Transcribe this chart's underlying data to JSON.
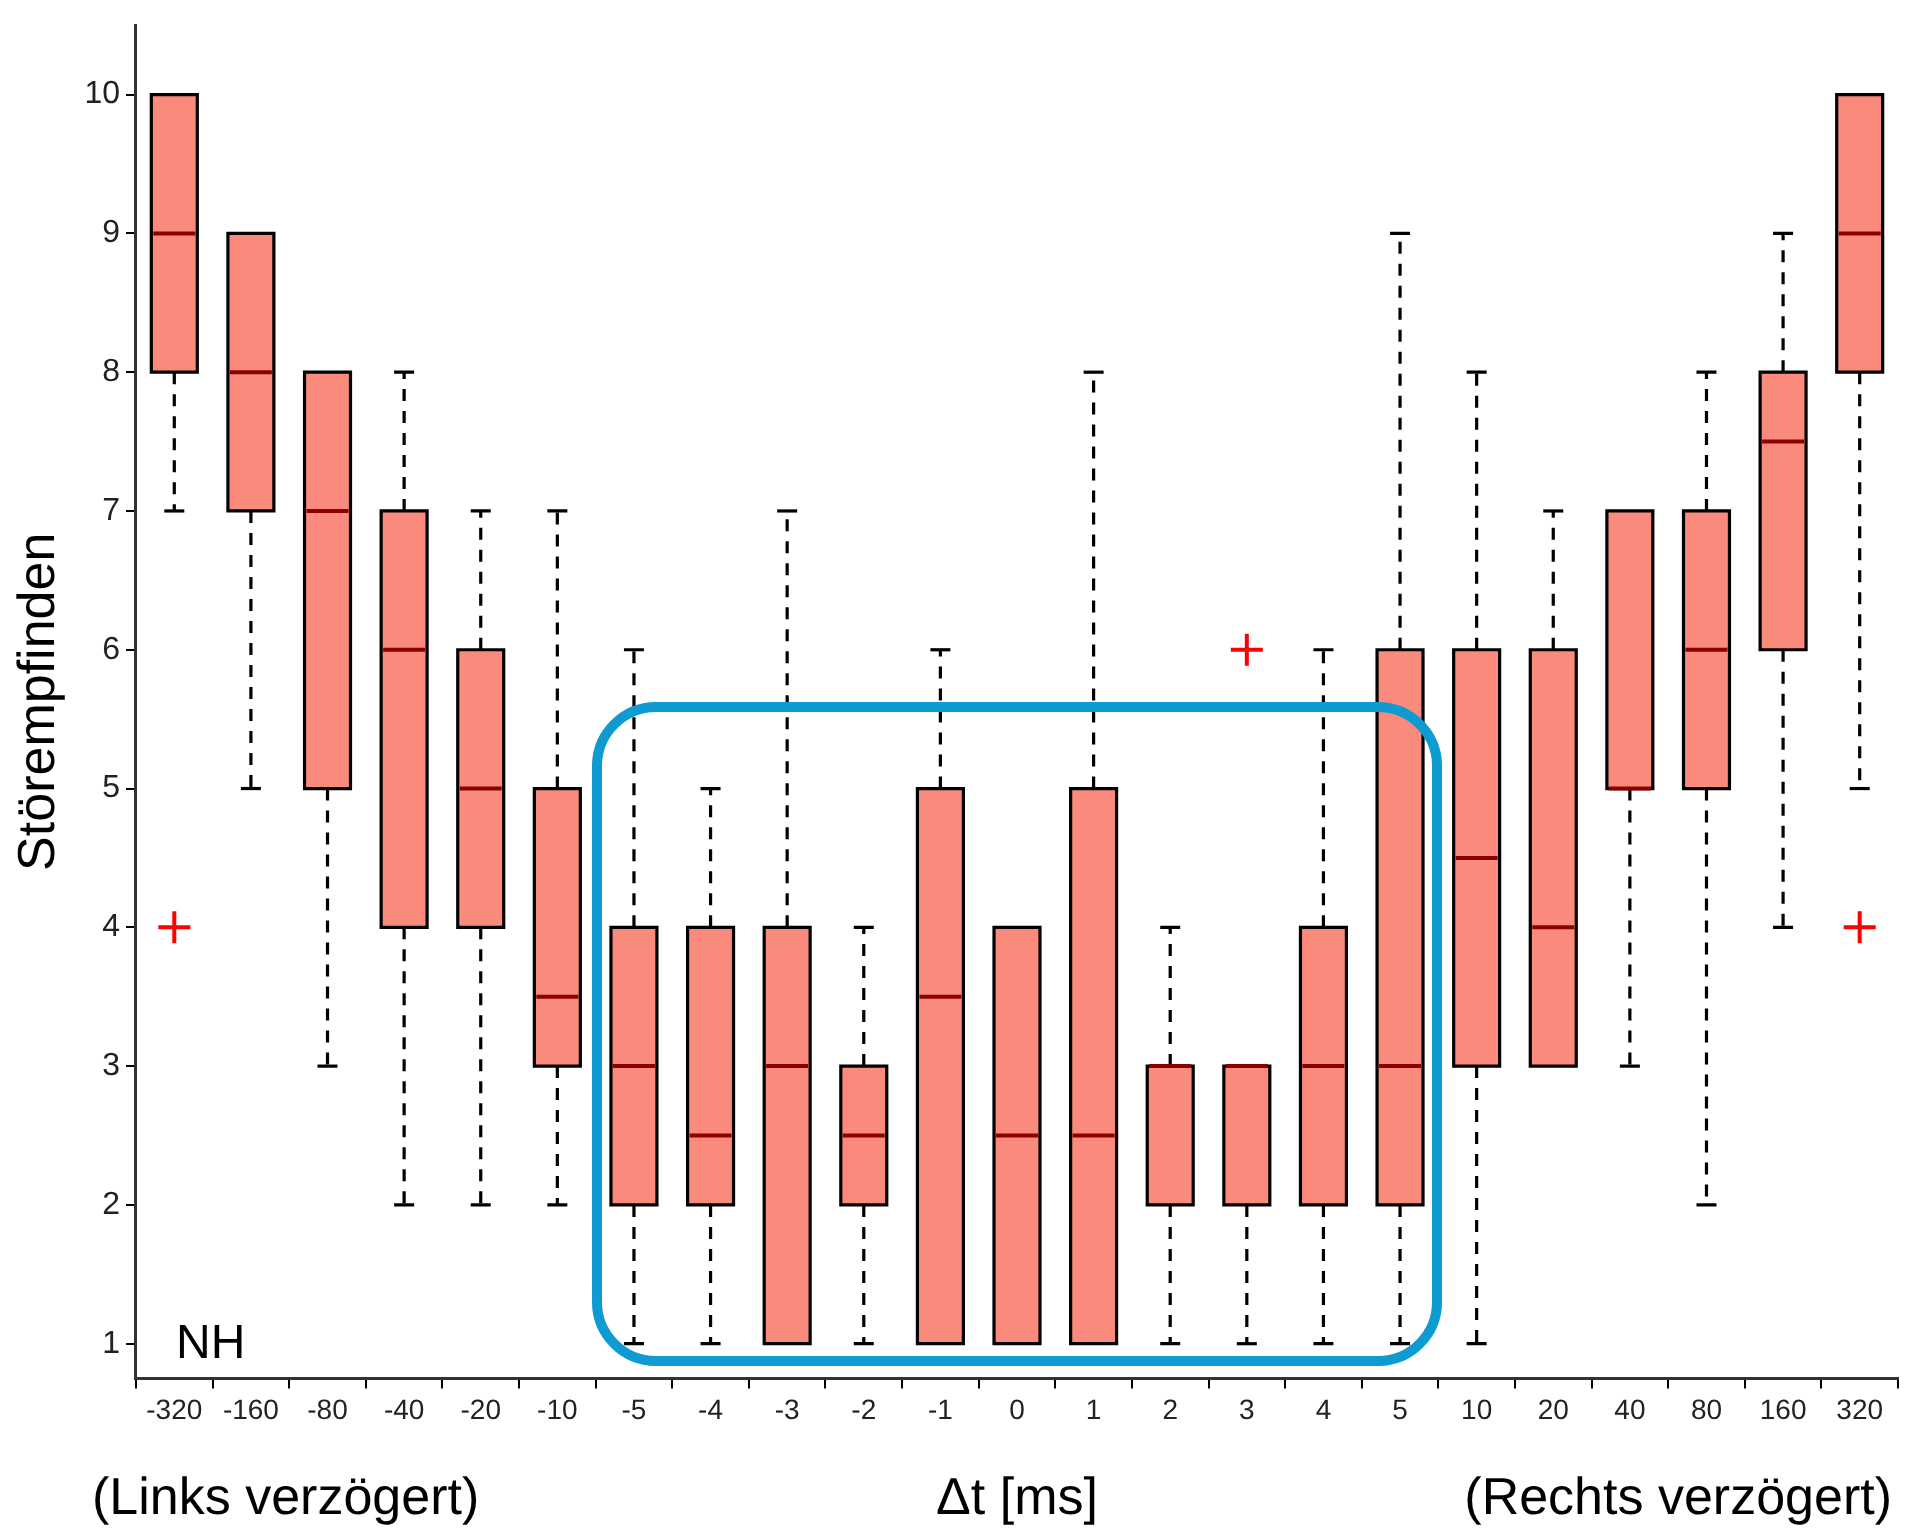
{
  "chart_data": {
    "type": "box",
    "xlabel": "Δt [ms]",
    "ylabel": "Störempfinden",
    "annotations": [
      "NH",
      "(Links verzögert)",
      "(Rechts verzögert)"
    ],
    "categories": [
      "-320",
      "-160",
      "-80",
      "-40",
      "-20",
      "-10",
      "-5",
      "-4",
      "-3",
      "-2",
      "-1",
      "0",
      "1",
      "2",
      "3",
      "4",
      "5",
      "10",
      "20",
      "40",
      "80",
      "160",
      "320"
    ],
    "color": "#fa8a7c",
    "boxes": [
      {
        "low": 7,
        "q1": 8,
        "median": 9,
        "q3": 10,
        "high": 10,
        "outliers": [
          4
        ]
      },
      {
        "low": 5,
        "q1": 7,
        "median": 8,
        "q3": 9,
        "high": 9
      },
      {
        "low": 3,
        "q1": 5,
        "median": 7,
        "q3": 8,
        "high": 8
      },
      {
        "low": 2,
        "q1": 4,
        "median": 6,
        "q3": 7,
        "high": 8
      },
      {
        "low": 2,
        "q1": 4,
        "median": 5,
        "q3": 6,
        "high": 7
      },
      {
        "low": 2,
        "q1": 3,
        "median": 3.5,
        "q3": 5,
        "high": 7
      },
      {
        "low": 1,
        "q1": 2,
        "median": 3,
        "q3": 4,
        "high": 6
      },
      {
        "low": 1,
        "q1": 2,
        "median": 2.5,
        "q3": 4,
        "high": 5
      },
      {
        "low": 1,
        "q1": 1,
        "median": 3,
        "q3": 4,
        "high": 7
      },
      {
        "low": 1,
        "q1": 2,
        "median": 2.5,
        "q3": 3,
        "high": 4
      },
      {
        "low": 1,
        "q1": 1,
        "median": 3.5,
        "q3": 5,
        "high": 6
      },
      {
        "low": 1,
        "q1": 1,
        "median": 2.5,
        "q3": 4,
        "high": 4
      },
      {
        "low": 1,
        "q1": 1,
        "median": 2.5,
        "q3": 5,
        "high": 8
      },
      {
        "low": 1,
        "q1": 2,
        "median": 3,
        "q3": 3,
        "high": 4
      },
      {
        "low": 1,
        "q1": 2,
        "median": 3,
        "q3": 3,
        "high": 3,
        "outliers": [
          6
        ]
      },
      {
        "low": 1,
        "q1": 2,
        "median": 3,
        "q3": 4,
        "high": 6
      },
      {
        "low": 1,
        "q1": 2,
        "median": 3,
        "q3": 6,
        "high": 9
      },
      {
        "low": 1,
        "q1": 3,
        "median": 4.5,
        "q3": 6,
        "high": 8
      },
      {
        "low": 3,
        "q1": 3,
        "median": 4,
        "q3": 6,
        "high": 7
      },
      {
        "low": 3,
        "q1": 5,
        "median": 5,
        "q3": 7,
        "high": 7
      },
      {
        "low": 2,
        "q1": 5,
        "median": 6,
        "q3": 7,
        "high": 8
      },
      {
        "low": 4,
        "q1": 6,
        "median": 7.5,
        "q3": 8,
        "high": 9
      },
      {
        "low": 5,
        "q1": 8,
        "median": 9,
        "q3": 10,
        "high": 10,
        "outliers": [
          4
        ]
      }
    ],
    "ylim": [
      0.75,
      10.5
    ],
    "yticks": [
      1,
      2,
      3,
      4,
      5,
      6,
      7,
      8,
      9,
      10
    ],
    "grid": false,
    "legend": false,
    "marker": "cross"
  }
}
